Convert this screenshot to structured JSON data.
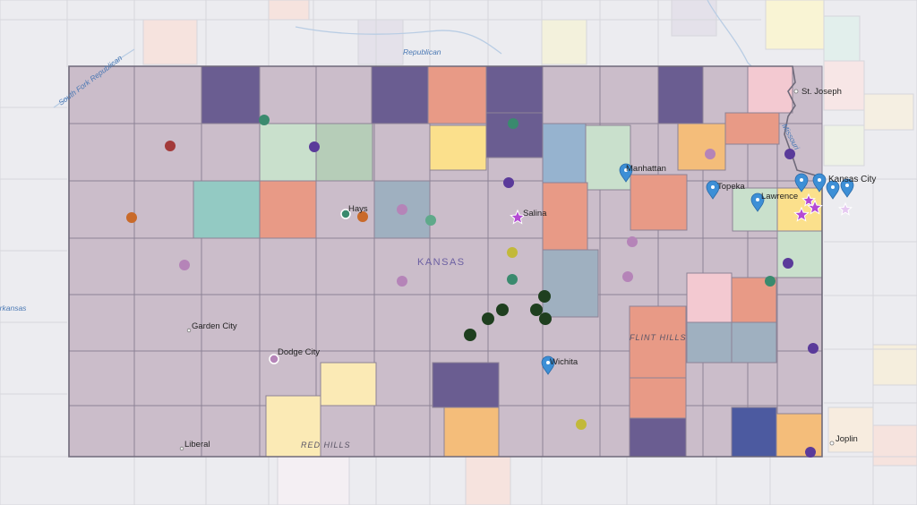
{
  "state_label": "KANSAS",
  "regions": [
    "FLINT HILLS",
    "RED HILLS"
  ],
  "rivers": [
    "South Fork Republican",
    "Republican",
    "Missouri",
    "Arkansas"
  ],
  "cities": {
    "kansas_city": "Kansas City",
    "st_joseph": "St. Joseph",
    "topeka": "Topeka",
    "lawrence": "Lawrence",
    "manhattan": "Manhattan",
    "salina": "Salina",
    "hays": "Hays",
    "wichita": "Wichita",
    "garden_city": "Garden City",
    "dodge_city": "Dodge City",
    "liberal": "Liberal",
    "joplin": "Joplin"
  },
  "colors": {
    "county_default": "#cbbdca",
    "dark_purple": "#6a5d91",
    "salmon": "#e89a86",
    "yellow": "#fbe08c",
    "light_yellow": "#fbeab5",
    "orange": "#f4bd7a",
    "blue_gray": "#9fb0c0",
    "steel_blue": "#96b3cf",
    "teal": "#93cac3",
    "mint": "#c9e0cc",
    "sage": "#b6cdb8",
    "pink": "#f3c9d1",
    "navy": "#4c5aa0",
    "pin_blue": "#3d8fd6",
    "star_purple": "#b44ad4"
  }
}
